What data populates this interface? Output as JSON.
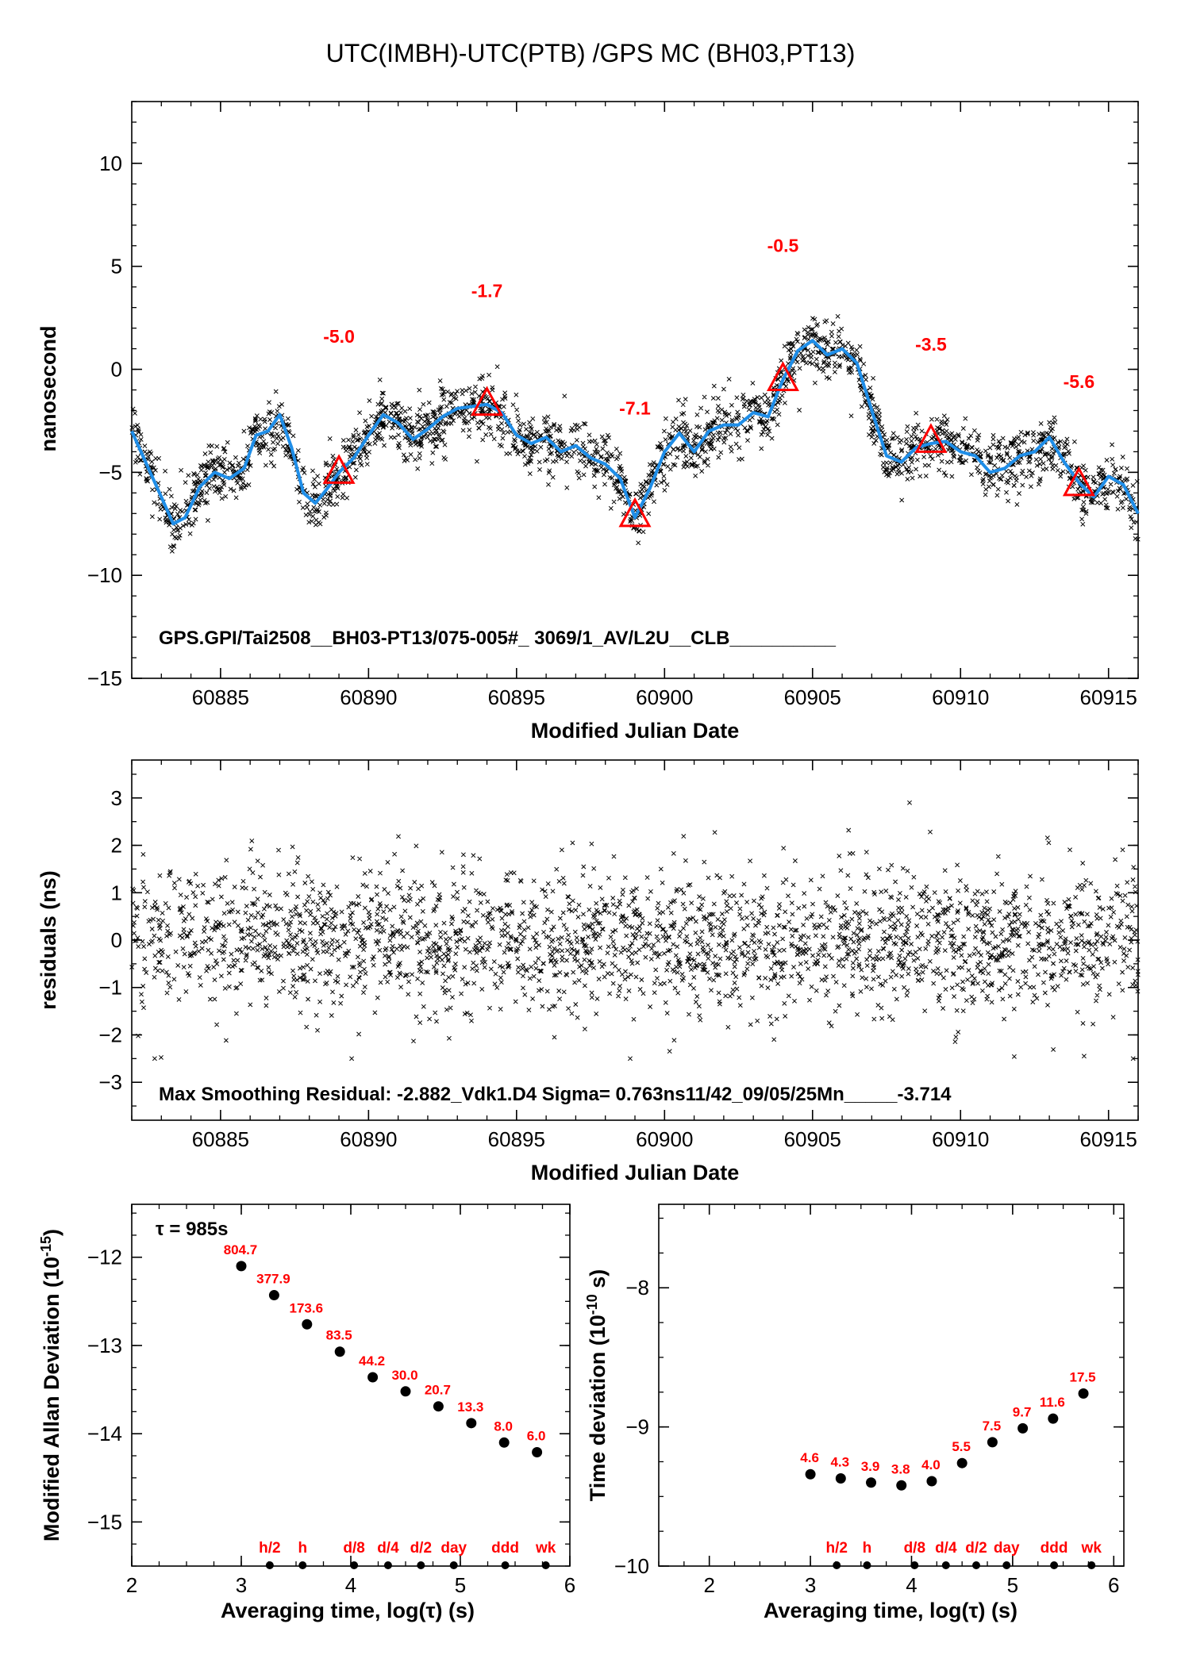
{
  "title": "UTC(IMBH)-UTC(PTB)  /GPS  MC  (BH03,PT13)",
  "colors": {
    "marker": "#ff0000",
    "smooth": "#1f8ee8",
    "points": "#000000"
  },
  "chart_data": [
    {
      "type": "scatter",
      "panel": "time-difference",
      "ylabel": "nanosecond",
      "xlabel": "Modified Julian Date",
      "xlim": [
        60882,
        60916
      ],
      "ylim": [
        -15,
        13
      ],
      "xticks": [
        60885,
        60890,
        60895,
        60900,
        60905,
        60910,
        60915
      ],
      "yticks": [
        -15,
        -10,
        -5,
        0,
        5,
        10
      ],
      "annotation": "GPS.GPI/Tai2508__BH03-PT13/075-005#_  3069/1_AV/L2U__CLB__________",
      "smooth_curve": {
        "x": [
          60882,
          60882.5,
          60883,
          60883.4,
          60883.8,
          60884.3,
          60884.8,
          60885.3,
          60885.8,
          60886.2,
          60886.6,
          60887,
          60887.4,
          60887.8,
          60888.2,
          60888.6,
          60889,
          60889.5,
          60890,
          60890.5,
          60891,
          60891.5,
          60892,
          60892.5,
          60893,
          60893.5,
          60894,
          60894.5,
          60895,
          60895.5,
          60896,
          60896.5,
          60897,
          60897.5,
          60898,
          60898.5,
          60899,
          60899.5,
          60900,
          60900.5,
          60901,
          60901.5,
          60902,
          60902.5,
          60903,
          60903.5,
          60904,
          60904.5,
          60905,
          60905.5,
          60906,
          60906.5,
          60907,
          60907.5,
          60908,
          60908.5,
          60909,
          60909.5,
          60910,
          60910.5,
          60911,
          60911.5,
          60912,
          60912.5,
          60913,
          60913.5,
          60914,
          60914.5,
          60915,
          60915.5,
          60916
        ],
        "y": [
          -3,
          -4.6,
          -6.2,
          -7.5,
          -7.2,
          -5.7,
          -5.0,
          -5.3,
          -4.8,
          -3.2,
          -3.0,
          -2.2,
          -3.8,
          -6.0,
          -6.5,
          -5.8,
          -5.0,
          -4.3,
          -3.2,
          -2.2,
          -2.6,
          -3.4,
          -2.9,
          -2.3,
          -1.9,
          -1.8,
          -1.7,
          -2.1,
          -3.2,
          -3.6,
          -3.3,
          -4.0,
          -3.7,
          -4.3,
          -4.6,
          -5.3,
          -7.2,
          -5.8,
          -4.0,
          -3.1,
          -4.0,
          -3.0,
          -2.7,
          -2.7,
          -2.1,
          -2.3,
          -0.5,
          0.9,
          1.4,
          0.7,
          1.0,
          0.3,
          -2.0,
          -4.2,
          -4.5,
          -3.8,
          -3.6,
          -3.5,
          -4.0,
          -4.2,
          -5.0,
          -4.8,
          -4.2,
          -4.0,
          -3.3,
          -4.5,
          -5.5,
          -6.2,
          -5.2,
          -5.6,
          -7.0
        ]
      },
      "markers": [
        {
          "x": 60889,
          "y": -5.0,
          "label": "-5.0"
        },
        {
          "x": 60894,
          "y": -1.7,
          "label": "-1.7"
        },
        {
          "x": 60899,
          "y": -7.1,
          "label": "-7.1"
        },
        {
          "x": 60904,
          "y": -0.5,
          "label": "-0.5"
        },
        {
          "x": 60909,
          "y": -3.5,
          "label": "-3.5"
        },
        {
          "x": 60914,
          "y": -5.6,
          "label": "-5.6"
        }
      ],
      "scatter_note": "dense cloud of ~3000 points scattered about the smooth curve (noise ~±1 ns)"
    },
    {
      "type": "scatter",
      "panel": "residuals",
      "ylabel": "residuals (ns)",
      "xlabel": "Modified Julian Date",
      "xlim": [
        60882,
        60916
      ],
      "ylim": [
        -3.8,
        3.8
      ],
      "xticks": [
        60885,
        60890,
        60895,
        60900,
        60905,
        60910,
        60915
      ],
      "yticks": [
        -3,
        -2,
        -1,
        0,
        1,
        2,
        3
      ],
      "annotation": "Max Smoothing Residual: -2.882_Vdk1.D4  Sigma= 0.763ns11/42_09/05/25Mn_____-3.714",
      "sigma_ns": 0.763
    },
    {
      "type": "scatter",
      "panel": "modified-allan-deviation",
      "ylabel": "Modified Allan Deviation (10",
      "ylabel_sup": "-15",
      "ylabel_end": ")",
      "xlabel": "Averaging time, log(τ) (s)",
      "xlim": [
        2,
        6
      ],
      "ylim": [
        -15.5,
        -11.4
      ],
      "xticks": [
        2,
        3,
        4,
        5,
        6
      ],
      "yticks": [
        -15,
        -14,
        -13,
        -12
      ],
      "tau_note": "τ = 985s",
      "points": [
        {
          "x": 3.0,
          "y": -12.1,
          "label": "804.7"
        },
        {
          "x": 3.3,
          "y": -12.43,
          "label": "377.9"
        },
        {
          "x": 3.6,
          "y": -12.76,
          "label": "173.6"
        },
        {
          "x": 3.9,
          "y": -13.07,
          "label": "83.5"
        },
        {
          "x": 4.2,
          "y": -13.36,
          "label": "44.2"
        },
        {
          "x": 4.5,
          "y": -13.52,
          "label": "30.0"
        },
        {
          "x": 4.8,
          "y": -13.69,
          "label": "20.7"
        },
        {
          "x": 5.1,
          "y": -13.88,
          "label": "13.3"
        },
        {
          "x": 5.4,
          "y": -14.1,
          "label": "8.0"
        },
        {
          "x": 5.7,
          "y": -14.21,
          "label": "6.0"
        }
      ],
      "interval_marks": [
        {
          "x": 3.26,
          "label": "h/2"
        },
        {
          "x": 3.56,
          "label": "h"
        },
        {
          "x": 4.03,
          "label": "d/8"
        },
        {
          "x": 4.34,
          "label": "d/4"
        },
        {
          "x": 4.64,
          "label": "d/2"
        },
        {
          "x": 4.94,
          "label": "day"
        },
        {
          "x": 5.41,
          "label": "ddd"
        },
        {
          "x": 5.78,
          "label": "wk"
        }
      ]
    },
    {
      "type": "scatter",
      "panel": "time-deviation",
      "ylabel": "Time deviation (10",
      "ylabel_sup": "-10",
      "ylabel_end": " s)",
      "xlabel": "Averaging time, log(τ) (s)",
      "xlim": [
        1.5,
        6.1
      ],
      "ylim": [
        -10,
        -7.4
      ],
      "xticks": [
        2,
        3,
        4,
        5,
        6
      ],
      "yticks": [
        -10,
        -9,
        -8
      ],
      "points": [
        {
          "x": 3.0,
          "y": -9.34,
          "label": "4.6"
        },
        {
          "x": 3.3,
          "y": -9.37,
          "label": "4.3"
        },
        {
          "x": 3.6,
          "y": -9.4,
          "label": "3.9"
        },
        {
          "x": 3.9,
          "y": -9.42,
          "label": "3.8"
        },
        {
          "x": 4.2,
          "y": -9.39,
          "label": "4.0"
        },
        {
          "x": 4.5,
          "y": -9.26,
          "label": "5.5"
        },
        {
          "x": 4.8,
          "y": -9.11,
          "label": "7.5"
        },
        {
          "x": 5.1,
          "y": -9.01,
          "label": "9.7"
        },
        {
          "x": 5.4,
          "y": -8.94,
          "label": "11.6"
        },
        {
          "x": 5.7,
          "y": -8.76,
          "label": "17.5"
        }
      ],
      "interval_marks": [
        {
          "x": 3.26,
          "label": "h/2"
        },
        {
          "x": 3.56,
          "label": "h"
        },
        {
          "x": 4.03,
          "label": "d/8"
        },
        {
          "x": 4.34,
          "label": "d/4"
        },
        {
          "x": 4.64,
          "label": "d/2"
        },
        {
          "x": 4.94,
          "label": "day"
        },
        {
          "x": 5.41,
          "label": "ddd"
        },
        {
          "x": 5.78,
          "label": "wk"
        }
      ]
    }
  ]
}
